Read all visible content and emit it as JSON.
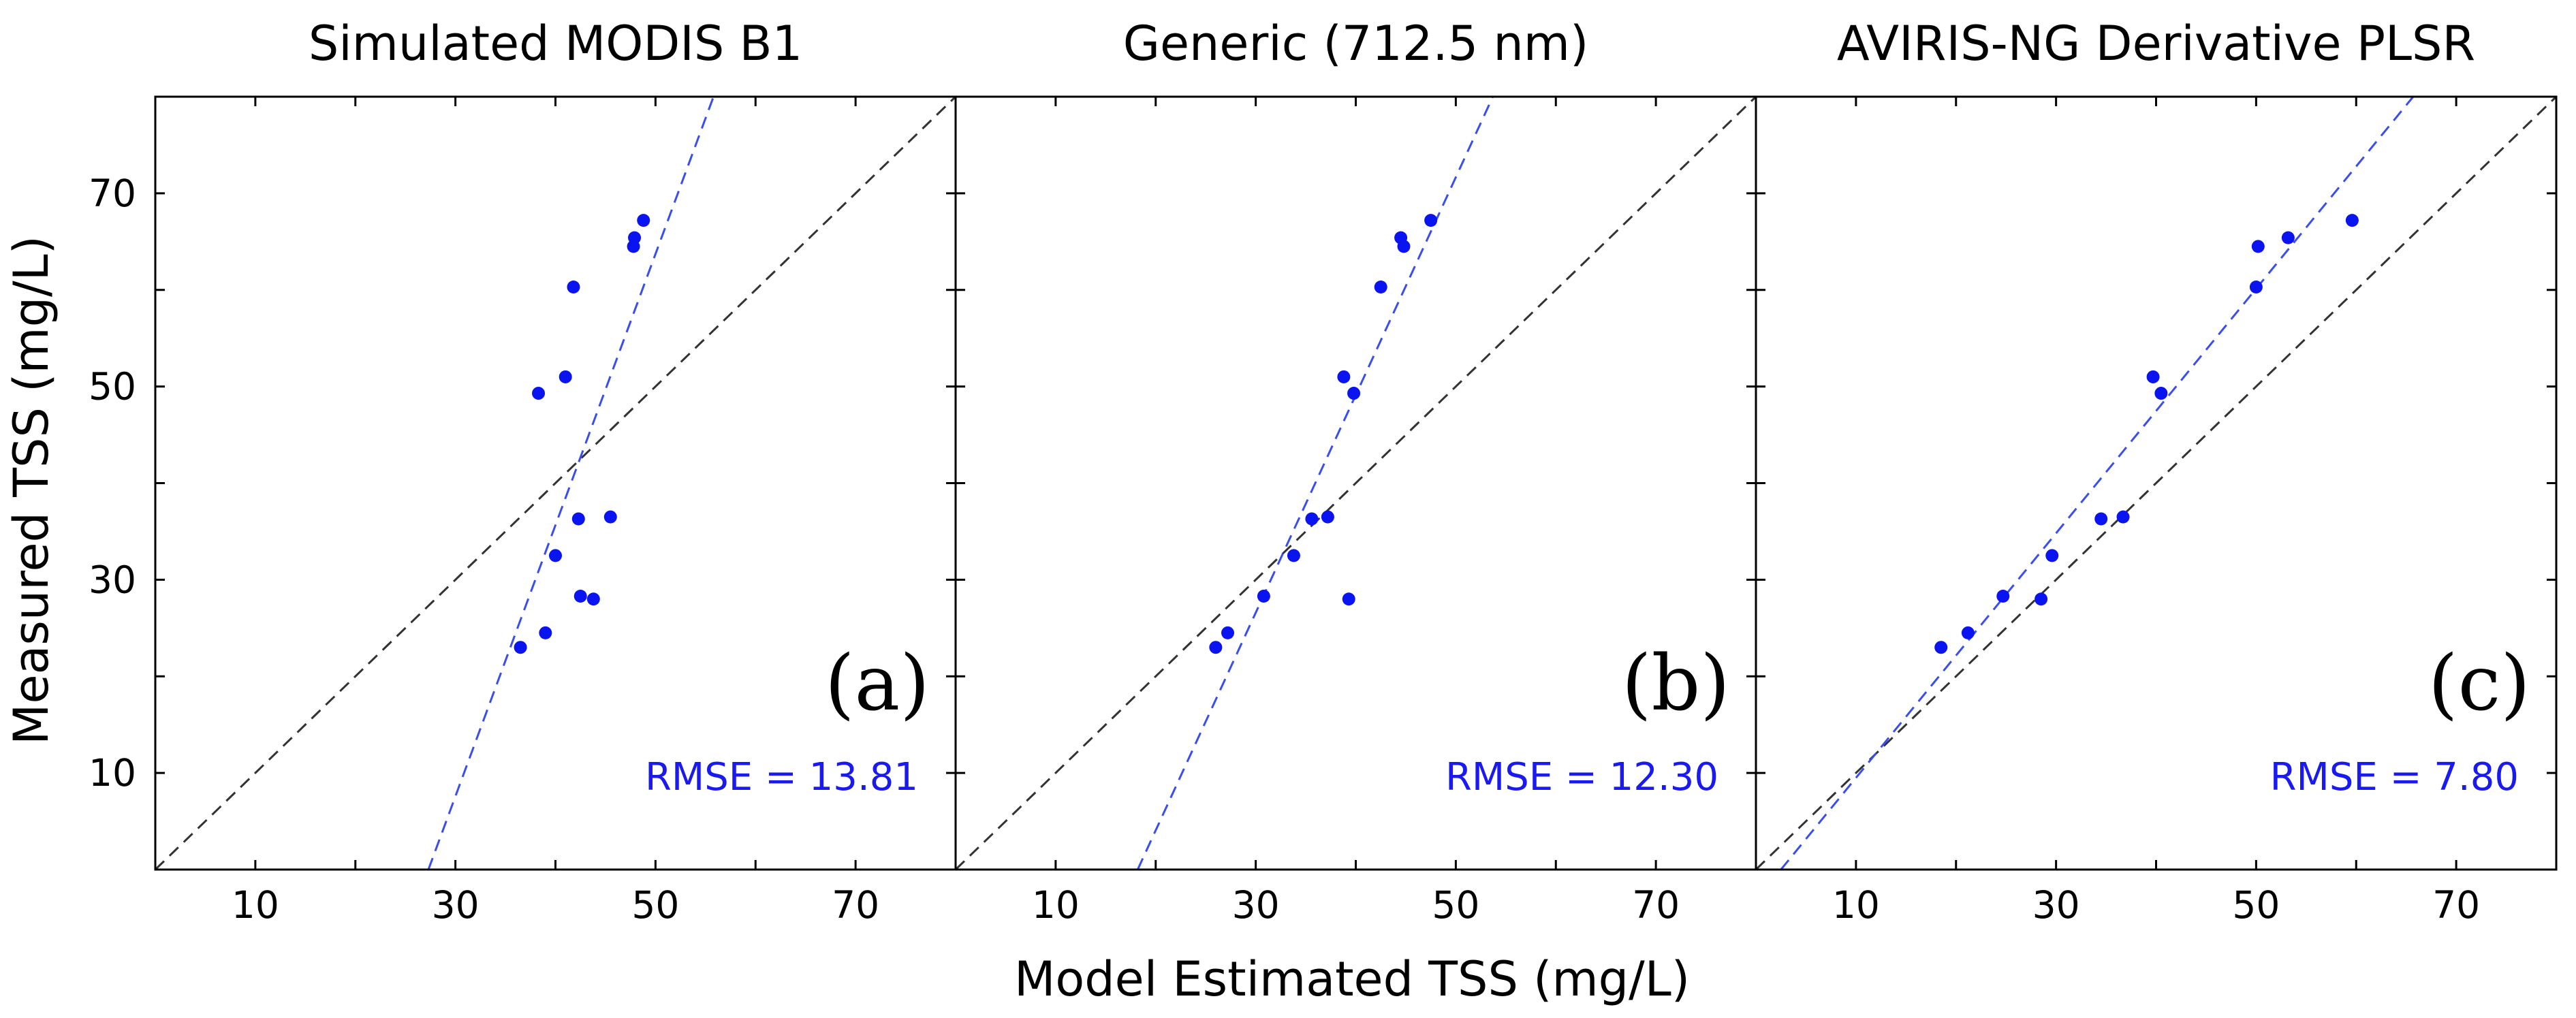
{
  "figure": {
    "ylabel": "Measured TSS (mg/L)",
    "xlabel": "Model Estimated TSS (mg/L)",
    "colors": {
      "points": "#0a14f0",
      "fit_line": "#3a4ef0",
      "one_to_one": "#333333",
      "metric_text": "#1a1af0",
      "axis": "#000000"
    },
    "icons": {
      "points": "blue-dot-marker",
      "fit_line": "dashed-blue-line",
      "one_to_one": "dashed-black-line"
    }
  },
  "chart_data": [
    {
      "type": "scatter",
      "title": "Simulated MODIS B1",
      "panel_label": "(a)",
      "metric": "RMSE = 13.81",
      "xlim": [
        0,
        80
      ],
      "ylim": [
        0,
        80
      ],
      "xticks": [
        10,
        30,
        50,
        70
      ],
      "yticks": [
        10,
        30,
        50,
        70
      ],
      "x": [
        36.5,
        39.0,
        42.5,
        43.8,
        40.0,
        42.3,
        45.5,
        38.3,
        41.0,
        41.8,
        47.8,
        47.9,
        48.8
      ],
      "y": [
        23.0,
        24.5,
        28.3,
        28.0,
        32.5,
        36.3,
        36.5,
        49.3,
        51.0,
        60.3,
        64.5,
        65.4,
        67.2
      ],
      "fit_line": {
        "x": [
          27.3,
          55.8
        ],
        "y": [
          0,
          80
        ]
      },
      "one_to_one": {
        "x": [
          0,
          80
        ],
        "y": [
          0,
          80
        ]
      }
    },
    {
      "type": "scatter",
      "title": "Generic (712.5 nm)",
      "panel_label": "(b)",
      "metric": "RMSE = 12.30",
      "xlim": [
        0,
        80
      ],
      "ylim": [
        0,
        80
      ],
      "xticks": [
        10,
        30,
        50,
        70
      ],
      "yticks": [
        10,
        30,
        50,
        70
      ],
      "x": [
        26.0,
        27.2,
        30.8,
        39.3,
        33.8,
        35.6,
        37.2,
        38.8,
        39.8,
        42.5,
        44.8,
        44.5,
        47.5
      ],
      "y": [
        23.0,
        24.5,
        28.3,
        28.0,
        32.5,
        36.3,
        36.5,
        51.0,
        49.3,
        60.3,
        64.5,
        65.4,
        67.2
      ],
      "fit_line": {
        "x": [
          18.2,
          53.7
        ],
        "y": [
          0,
          80
        ]
      },
      "one_to_one": {
        "x": [
          0,
          80
        ],
        "y": [
          0,
          80
        ]
      }
    },
    {
      "type": "scatter",
      "title": "AVIRIS-NG Derivative PLSR",
      "panel_label": "(c)",
      "metric": "RMSE = 7.80",
      "xlim": [
        0,
        80
      ],
      "ylim": [
        0,
        80
      ],
      "xticks": [
        10,
        30,
        50,
        70
      ],
      "yticks": [
        10,
        30,
        50,
        70
      ],
      "x": [
        18.5,
        21.2,
        24.7,
        28.5,
        29.6,
        34.5,
        36.7,
        39.7,
        40.5,
        50.0,
        50.2,
        53.2,
        59.6
      ],
      "y": [
        23.0,
        24.5,
        28.3,
        28.0,
        32.5,
        36.3,
        36.5,
        51.0,
        49.3,
        60.3,
        64.5,
        65.4,
        67.2
      ],
      "fit_line": {
        "x": [
          2.5,
          65.7
        ],
        "y": [
          0,
          80
        ]
      },
      "one_to_one": {
        "x": [
          0,
          80
        ],
        "y": [
          0,
          80
        ]
      }
    }
  ]
}
